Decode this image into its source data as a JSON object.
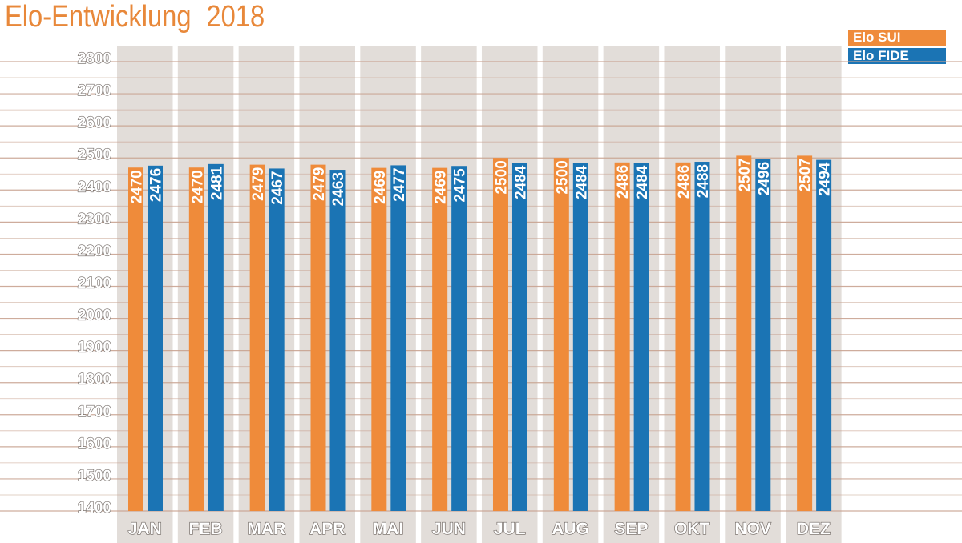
{
  "chart_data": {
    "type": "bar",
    "title": "Elo-Entwicklung",
    "subtitle": "2018",
    "categories": [
      "JAN",
      "FEB",
      "MAR",
      "APR",
      "MAI",
      "JUN",
      "JUL",
      "AUG",
      "SEP",
      "OKT",
      "NOV",
      "DEZ"
    ],
    "series": [
      {
        "name": "Elo SUI",
        "color": "#ef8b3a",
        "values": [
          2470,
          2470,
          2479,
          2479,
          2469,
          2469,
          2500,
          2500,
          2486,
          2486,
          2507,
          2507
        ]
      },
      {
        "name": "Elo FIDE",
        "color": "#1b74b4",
        "values": [
          2476,
          2481,
          2467,
          2463,
          2477,
          2475,
          2484,
          2484,
          2484,
          2488,
          2496,
          2494
        ]
      }
    ],
    "yticks": [
      1400,
      1500,
      1600,
      1700,
      1800,
      1900,
      2000,
      2100,
      2200,
      2300,
      2400,
      2500,
      2600,
      2700,
      2800
    ],
    "ylim": [
      1400,
      2800
    ],
    "xlabel": "",
    "ylabel": "",
    "grid": true,
    "legend": "top-right"
  },
  "colors": {
    "title": "#e8883a",
    "column_bg": "#e2ddd9",
    "gridline": "#c9a492"
  }
}
